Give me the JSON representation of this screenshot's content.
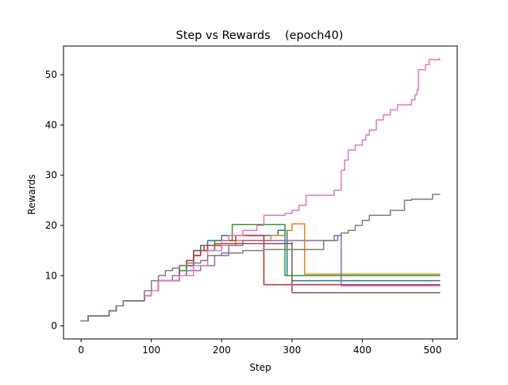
{
  "chart_data": {
    "type": "line",
    "title": "Step vs Rewards    (epoch40)",
    "xlabel": "Step",
    "ylabel": "Rewards",
    "xlim": [
      -25,
      535
    ],
    "ylim": [
      -2.6,
      55.7
    ],
    "xticks": [
      0,
      100,
      200,
      300,
      400,
      500
    ],
    "yticks": [
      0,
      10,
      20,
      30,
      40,
      50
    ],
    "grid": false,
    "legend": "none",
    "series": [
      {
        "color": "#1f77b4",
        "points": [
          [
            0,
            1
          ],
          [
            10,
            2
          ],
          [
            40,
            3
          ],
          [
            50,
            4
          ],
          [
            60,
            5
          ],
          [
            90,
            6
          ],
          [
            100,
            7
          ],
          [
            110,
            9
          ],
          [
            140,
            10
          ],
          [
            150,
            12
          ],
          [
            160,
            14
          ],
          [
            170,
            16
          ],
          [
            180,
            17
          ],
          [
            200,
            18
          ],
          [
            230,
            18
          ],
          [
            260,
            18
          ],
          [
            280,
            19
          ],
          [
            293,
            10
          ],
          [
            300,
            9
          ],
          [
            510,
            9
          ]
        ]
      },
      {
        "color": "#ff7f0e",
        "points": [
          [
            0,
            1
          ],
          [
            10,
            2
          ],
          [
            40,
            3
          ],
          [
            50,
            4
          ],
          [
            60,
            5
          ],
          [
            90,
            6
          ],
          [
            100,
            7
          ],
          [
            110,
            9
          ],
          [
            140,
            11
          ],
          [
            150,
            13
          ],
          [
            160,
            14
          ],
          [
            170,
            15
          ],
          [
            190,
            16
          ],
          [
            220,
            17
          ],
          [
            240,
            17
          ],
          [
            270,
            18
          ],
          [
            290,
            19
          ],
          [
            300,
            20.3
          ],
          [
            318,
            10.3
          ],
          [
            510,
            10.3
          ]
        ]
      },
      {
        "color": "#2ca02c",
        "points": [
          [
            0,
            1
          ],
          [
            10,
            2
          ],
          [
            40,
            3
          ],
          [
            50,
            4
          ],
          [
            60,
            5
          ],
          [
            90,
            6
          ],
          [
            100,
            7
          ],
          [
            110,
            9
          ],
          [
            140,
            11
          ],
          [
            150,
            12
          ],
          [
            160,
            15
          ],
          [
            190,
            17
          ],
          [
            215,
            20.2
          ],
          [
            290,
            10
          ],
          [
            510,
            10
          ]
        ]
      },
      {
        "color": "#d62728",
        "points": [
          [
            0,
            1
          ],
          [
            10,
            2
          ],
          [
            40,
            3
          ],
          [
            50,
            4
          ],
          [
            60,
            5
          ],
          [
            90,
            6
          ],
          [
            100,
            7
          ],
          [
            110,
            9
          ],
          [
            140,
            12
          ],
          [
            150,
            13
          ],
          [
            160,
            14
          ],
          [
            170,
            15
          ],
          [
            180,
            16
          ],
          [
            200,
            17
          ],
          [
            220,
            18
          ],
          [
            260,
            8.2
          ],
          [
            510,
            8.2
          ]
        ]
      },
      {
        "color": "#9467bd",
        "points": [
          [
            0,
            1
          ],
          [
            10,
            2
          ],
          [
            40,
            3
          ],
          [
            50,
            4
          ],
          [
            60,
            5
          ],
          [
            90,
            6
          ],
          [
            100,
            7
          ],
          [
            110,
            9
          ],
          [
            130,
            10
          ],
          [
            150,
            11
          ],
          [
            170,
            12
          ],
          [
            190,
            14
          ],
          [
            210,
            16
          ],
          [
            230,
            17
          ],
          [
            300,
            17
          ],
          [
            330,
            17
          ],
          [
            365,
            18
          ],
          [
            370,
            8
          ],
          [
            510,
            8
          ]
        ]
      },
      {
        "color": "#8c564b",
        "points": [
          [
            0,
            1
          ],
          [
            10,
            2
          ],
          [
            40,
            3
          ],
          [
            50,
            4
          ],
          [
            60,
            5
          ],
          [
            90,
            6
          ],
          [
            100,
            7
          ],
          [
            110,
            9
          ],
          [
            140,
            12
          ],
          [
            160,
            15
          ],
          [
            175,
            16
          ],
          [
            190,
            16.4
          ],
          [
            240,
            16.4
          ],
          [
            300,
            16.6
          ],
          [
            300,
            6.6
          ],
          [
            510,
            6.6
          ]
        ]
      },
      {
        "color": "#e377c2",
        "points": [
          [
            0,
            1
          ],
          [
            10,
            2
          ],
          [
            40,
            3
          ],
          [
            50,
            4
          ],
          [
            60,
            5
          ],
          [
            90,
            6
          ],
          [
            100,
            7
          ],
          [
            110,
            9
          ],
          [
            140,
            10
          ],
          [
            160,
            12
          ],
          [
            180,
            15
          ],
          [
            200,
            17
          ],
          [
            210,
            18
          ],
          [
            230,
            19
          ],
          [
            250,
            20
          ],
          [
            260,
            22
          ],
          [
            290,
            22.4
          ],
          [
            300,
            23
          ],
          [
            310,
            24
          ],
          [
            320,
            26
          ],
          [
            350,
            26
          ],
          [
            360,
            27
          ],
          [
            370,
            31
          ],
          [
            375,
            33
          ],
          [
            380,
            35
          ],
          [
            390,
            36
          ],
          [
            400,
            37
          ],
          [
            405,
            38
          ],
          [
            410,
            39
          ],
          [
            420,
            41
          ],
          [
            430,
            42
          ],
          [
            440,
            43
          ],
          [
            450,
            44
          ],
          [
            470,
            45
          ],
          [
            475,
            46
          ],
          [
            478,
            47
          ],
          [
            480,
            51
          ],
          [
            490,
            52
          ],
          [
            495,
            53
          ],
          [
            510,
            53.2
          ]
        ]
      },
      {
        "color": "#7f7f7f",
        "points": [
          [
            0,
            1
          ],
          [
            10,
            2
          ],
          [
            40,
            3
          ],
          [
            50,
            4
          ],
          [
            60,
            5
          ],
          [
            90,
            7
          ],
          [
            100,
            9
          ],
          [
            110,
            10
          ],
          [
            120,
            11
          ],
          [
            130,
            11.5
          ],
          [
            140,
            12
          ],
          [
            150,
            12.5
          ],
          [
            170,
            13
          ],
          [
            180,
            14
          ],
          [
            200,
            14.5
          ],
          [
            230,
            15
          ],
          [
            260,
            15.2
          ],
          [
            340,
            15.2
          ],
          [
            345,
            17
          ],
          [
            360,
            18
          ],
          [
            370,
            18.5
          ],
          [
            380,
            19
          ],
          [
            390,
            20
          ],
          [
            400,
            21
          ],
          [
            410,
            22
          ],
          [
            440,
            23
          ],
          [
            460,
            25
          ],
          [
            470,
            25.2
          ],
          [
            500,
            26.2
          ],
          [
            510,
            26.2
          ]
        ]
      }
    ]
  }
}
